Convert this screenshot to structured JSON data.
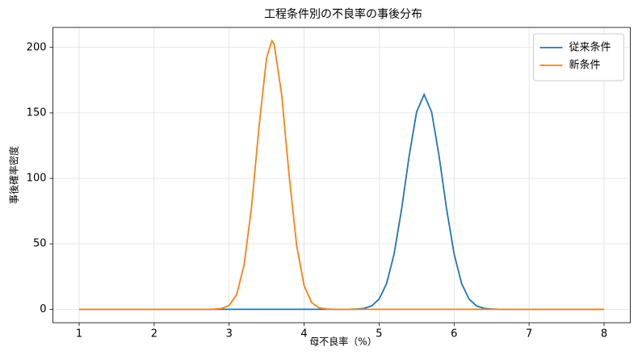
{
  "chart_data": {
    "type": "line",
    "title": "工程条件別の不良率の事後分布",
    "x_label": "母不良率（%）",
    "y_label": "事後確率密度",
    "x": [
      1,
      2.7,
      2.8,
      2.9,
      3.0,
      3.1,
      3.2,
      3.3,
      3.4,
      3.5,
      3.57,
      3.6,
      3.7,
      3.8,
      3.9,
      4.0,
      4.1,
      4.2,
      4.3,
      4.4,
      4.5,
      4.6,
      4.7,
      4.8,
      4.9,
      5.0,
      5.1,
      5.2,
      5.3,
      5.4,
      5.5,
      5.6,
      5.7,
      5.8,
      5.9,
      6.0,
      6.1,
      6.2,
      6.3,
      6.4,
      6.5,
      6.6,
      6.7,
      8
    ],
    "series": [
      {
        "name": "従来条件",
        "color": "#1f77b4",
        "values": [
          0,
          0,
          0,
          0,
          0,
          0,
          0,
          0,
          0,
          0,
          0,
          0,
          0,
          0,
          0,
          0,
          0,
          0,
          0,
          0,
          0,
          0,
          0.2,
          0.7,
          2.6,
          7.8,
          19.7,
          42.3,
          76.5,
          116.9,
          150.7,
          164,
          150.7,
          116.9,
          76.5,
          42.3,
          19.7,
          7.8,
          2.6,
          0.7,
          0.2,
          0,
          0,
          0
        ]
      },
      {
        "name": "新条件",
        "color": "#ff7f0e",
        "values": [
          0,
          0,
          0.1,
          0.6,
          2.9,
          11.2,
          33.9,
          78.6,
          140.2,
          192.2,
          205,
          202.6,
          164.1,
          102.3,
          49.0,
          18.0,
          5.1,
          1.1,
          0.2,
          0,
          0,
          0,
          0,
          0,
          0,
          0,
          0,
          0,
          0,
          0,
          0,
          0,
          0,
          0,
          0,
          0,
          0,
          0,
          0,
          0,
          0,
          0,
          0,
          0
        ]
      }
    ],
    "xlim": [
      0.65,
      8.35
    ],
    "ylim": [
      -10.25,
      215.25
    ],
    "xticks": [
      1,
      2,
      3,
      4,
      5,
      6,
      7,
      8
    ],
    "yticks": [
      0,
      50,
      100,
      150,
      200
    ],
    "grid": true,
    "legend": "upper right"
  }
}
